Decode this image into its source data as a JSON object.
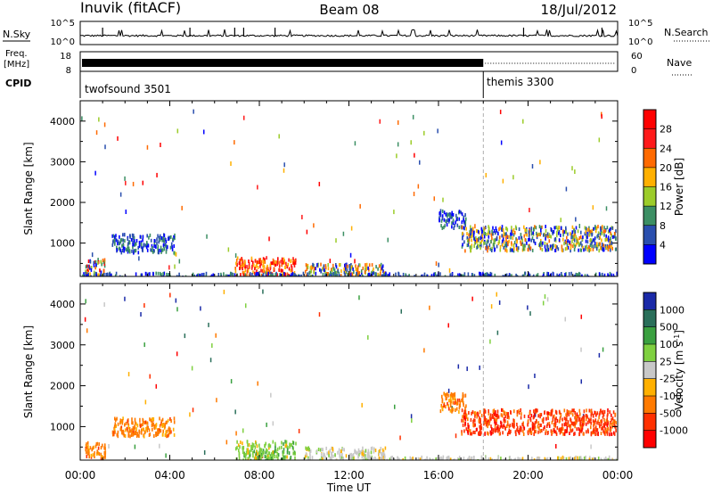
{
  "header": {
    "station": "Inuvik (fitACF)",
    "beam": "Beam 08",
    "date": "18/Jul/2012"
  },
  "top_panels": {
    "nsky_label": "N.Sky",
    "nsearch_label": "N.Search",
    "freq_label_line1": "Freq.",
    "freq_label_line2": "[MHz]",
    "nave_label": "Nave",
    "cpid_label": "CPID",
    "nsky_ticks": [
      "10^5",
      "10^0"
    ],
    "nsearch_ticks": [
      "10^5",
      "10^0"
    ],
    "freq_ticks": [
      "18",
      "8"
    ],
    "nave_ticks": [
      "60",
      "0"
    ],
    "cpid_segments": [
      {
        "name": "twofsound 3501",
        "start_hour": 0,
        "end_hour": 18.0
      },
      {
        "name": "themis 3300",
        "start_hour": 18.0,
        "end_hour": 24
      }
    ]
  },
  "chart_data": [
    {
      "type": "heatmap",
      "panel": "power",
      "xlabel": "",
      "ylabel": "Slant Range [km]",
      "xlim": [
        0,
        24
      ],
      "ylim": [
        180,
        4500
      ],
      "yticks": [
        1000,
        2000,
        3000,
        4000
      ],
      "colorbar": {
        "label": "Power [dB]",
        "levels": [
          "4",
          "8",
          "12",
          "16",
          "20",
          "24",
          "28"
        ],
        "colors": [
          "#0000ff",
          "#2a4fae",
          "#3c8f64",
          "#9ccc2a",
          "#ffb000",
          "#ff6a00",
          "#ff1a1a",
          "#ff0000"
        ]
      },
      "clusters": [
        {
          "t0": 0.2,
          "t1": 1.1,
          "r0": 250,
          "r1": 650,
          "dominant": "mixed"
        },
        {
          "t0": 1.4,
          "t1": 4.2,
          "r0": 800,
          "r1": 1250,
          "dominant": "low"
        },
        {
          "t0": 6.9,
          "t1": 9.6,
          "r0": 200,
          "r1": 680,
          "dominant": "high"
        },
        {
          "t0": 10.0,
          "t1": 13.6,
          "r0": 200,
          "r1": 520,
          "dominant": "mid"
        },
        {
          "t0": 16.0,
          "t1": 17.2,
          "r0": 1400,
          "r1": 1850,
          "dominant": "low"
        },
        {
          "t0": 17.0,
          "t1": 23.9,
          "r0": 850,
          "r1": 1450,
          "dominant": "mid"
        },
        {
          "t0": 0.0,
          "t1": 24.0,
          "r0": 200,
          "r1": 300,
          "dominant": "low"
        }
      ]
    },
    {
      "type": "heatmap",
      "panel": "velocity",
      "xlabel": "Time UT",
      "ylabel": "Slant Range [km]",
      "xlim": [
        0,
        24
      ],
      "ylim": [
        180,
        4500
      ],
      "xticks": [
        "00:00",
        "04:00",
        "08:00",
        "12:00",
        "16:00",
        "20:00",
        "00:00"
      ],
      "yticks": [
        1000,
        2000,
        3000,
        4000
      ],
      "colorbar": {
        "label": "Velocity [m s^-1]",
        "levels": [
          "1000",
          "500",
          "100",
          "25",
          "-25",
          "-100",
          "-500",
          "-1000"
        ],
        "colors": [
          "#1a2aa8",
          "#2a6f5a",
          "#3aa040",
          "#7fd040",
          "#c8c8c8",
          "#ffb000",
          "#ff7a00",
          "#ff3000",
          "#ff0000"
        ]
      },
      "clusters": [
        {
          "t0": 0.2,
          "t1": 1.1,
          "r0": 250,
          "r1": 650,
          "dominant": "orange"
        },
        {
          "t0": 1.4,
          "t1": 4.2,
          "r0": 800,
          "r1": 1250,
          "dominant": "orange"
        },
        {
          "t0": 6.9,
          "t1": 9.6,
          "r0": 200,
          "r1": 680,
          "dominant": "green"
        },
        {
          "t0": 10.0,
          "t1": 13.6,
          "r0": 200,
          "r1": 520,
          "dominant": "grey"
        },
        {
          "t0": 16.0,
          "t1": 17.2,
          "r0": 1400,
          "r1": 1850,
          "dominant": "orange"
        },
        {
          "t0": 17.0,
          "t1": 23.9,
          "r0": 850,
          "r1": 1450,
          "dominant": "red"
        },
        {
          "t0": 13.0,
          "t1": 24.0,
          "r0": 200,
          "r1": 300,
          "dominant": "grey"
        }
      ]
    }
  ]
}
